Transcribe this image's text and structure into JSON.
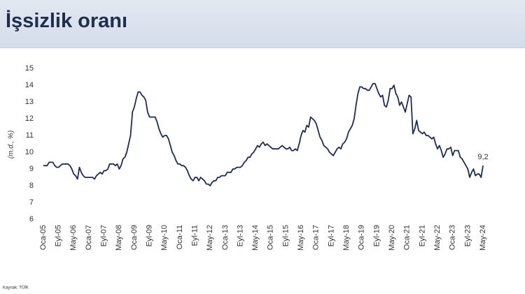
{
  "chart_data": {
    "type": "line",
    "title": "İşsizlik oranı",
    "ylabel": "(m.d., %)",
    "source": "Kaynak: TÜİK",
    "color": "#1f2d4e",
    "ylim": [
      6,
      15
    ],
    "yticks": [
      6,
      7,
      8,
      9,
      10,
      11,
      12,
      13,
      14,
      15
    ],
    "grid": false,
    "end_label": "9,2",
    "categories": [
      "Oca-05",
      null,
      null,
      null,
      null,
      null,
      null,
      null,
      "Eyl-05",
      null,
      null,
      null,
      null,
      null,
      null,
      null,
      "May-06",
      null,
      null,
      null,
      null,
      null,
      null,
      null,
      "Oca-07",
      null,
      null,
      null,
      null,
      null,
      null,
      null,
      "Eyl-07",
      null,
      null,
      null,
      null,
      null,
      null,
      null,
      "May-08",
      null,
      null,
      null,
      null,
      null,
      null,
      null,
      "Oca-09",
      null,
      null,
      null,
      null,
      null,
      null,
      null,
      "Eyl-09",
      null,
      null,
      null,
      null,
      null,
      null,
      null,
      "May-10",
      null,
      null,
      null,
      null,
      null,
      null,
      null,
      "Oca-11",
      null,
      null,
      null,
      null,
      null,
      null,
      null,
      "Eyl-11",
      null,
      null,
      null,
      null,
      null,
      null,
      null,
      "May-12",
      null,
      null,
      null,
      null,
      null,
      null,
      null,
      "Oca-13",
      null,
      null,
      null,
      null,
      null,
      null,
      null,
      "Eyl-13",
      null,
      null,
      null,
      null,
      null,
      null,
      null,
      "May-14",
      null,
      null,
      null,
      null,
      null,
      null,
      null,
      "Oca-15",
      null,
      null,
      null,
      null,
      null,
      null,
      null,
      "Eyl-15",
      null,
      null,
      null,
      null,
      null,
      null,
      null,
      "May-16",
      null,
      null,
      null,
      null,
      null,
      null,
      null,
      "Oca-17",
      null,
      null,
      null,
      null,
      null,
      null,
      null,
      "Eyl-17",
      null,
      null,
      null,
      null,
      null,
      null,
      null,
      "May-18",
      null,
      null,
      null,
      null,
      null,
      null,
      null,
      "Oca-19",
      null,
      null,
      null,
      null,
      null,
      null,
      null,
      "Eyl-19",
      null,
      null,
      null,
      null,
      null,
      null,
      null,
      "May-20",
      null,
      null,
      null,
      null,
      null,
      null,
      null,
      "Oca-21",
      null,
      null,
      null,
      null,
      null,
      null,
      null,
      "Eyl-21",
      null,
      null,
      null,
      null,
      null,
      null,
      null,
      "May-22",
      null,
      null,
      null,
      null,
      null,
      null,
      null,
      "Oca-23",
      null,
      null,
      null,
      null,
      null,
      null,
      null,
      "Eyl-23",
      null,
      null,
      null,
      null,
      null,
      null,
      null,
      "May-24"
    ],
    "values": [
      9.2,
      9.2,
      9.2,
      9.4,
      9.4,
      9.4,
      9.2,
      9.1,
      9.1,
      9.2,
      9.3,
      9.3,
      9.3,
      9.3,
      9.2,
      9.0,
      8.7,
      8.6,
      8.4,
      9.1,
      8.8,
      8.6,
      8.5,
      8.5,
      8.5,
      8.5,
      8.5,
      8.4,
      8.6,
      8.7,
      8.8,
      8.7,
      8.9,
      8.9,
      9.0,
      9.3,
      9.3,
      9.3,
      9.2,
      9.3,
      9.0,
      9.2,
      9.6,
      9.7,
      10.0,
      10.5,
      11.0,
      12.4,
      12.7,
      13.2,
      13.6,
      13.6,
      13.4,
      13.3,
      13.1,
      12.4,
      12.1,
      12.1,
      12.1,
      12.1,
      11.8,
      11.4,
      11.1,
      10.9,
      11.0,
      11.0,
      10.8,
      10.4,
      10.0,
      9.8,
      9.5,
      9.3,
      9.3,
      9.2,
      9.2,
      9.1,
      8.9,
      8.6,
      8.4,
      8.3,
      8.5,
      8.5,
      8.3,
      8.5,
      8.4,
      8.3,
      8.1,
      8.1,
      8.0,
      8.2,
      8.3,
      8.3,
      8.5,
      8.5,
      8.6,
      8.6,
      8.6,
      8.8,
      8.8,
      8.8,
      9.0,
      9.0,
      9.1,
      9.1,
      9.1,
      9.2,
      9.4,
      9.5,
      9.7,
      9.7,
      9.9,
      10.0,
      10.2,
      10.4,
      10.3,
      10.5,
      10.6,
      10.4,
      10.5,
      10.4,
      10.3,
      10.2,
      10.2,
      10.2,
      10.2,
      10.3,
      10.4,
      10.3,
      10.2,
      10.2,
      10.3,
      10.1,
      10.1,
      10.2,
      10.1,
      10.5,
      11.0,
      11.3,
      11.2,
      11.6,
      11.5,
      12.1,
      12.0,
      11.9,
      11.7,
      11.3,
      10.9,
      10.7,
      10.4,
      10.3,
      10.2,
      10.0,
      9.9,
      9.8,
      10.0,
      10.2,
      10.3,
      10.2,
      10.5,
      10.6,
      10.8,
      11.2,
      11.4,
      11.6,
      12.0,
      12.8,
      13.5,
      13.9,
      13.9,
      13.8,
      13.8,
      13.7,
      13.7,
      13.9,
      14.1,
      14.1,
      13.8,
      13.5,
      13.3,
      13.4,
      12.8,
      12.7,
      13.1,
      13.8,
      13.8,
      14.0,
      13.5,
      13.3,
      12.8,
      13.0,
      12.7,
      12.4,
      12.9,
      13.4,
      13.3,
      11.1,
      11.4,
      11.9,
      11.3,
      11.2,
      11.1,
      11.2,
      11.0,
      11.0,
      10.9,
      10.8,
      10.9,
      10.5,
      10.2,
      10.4,
      10.1,
      9.7,
      9.9,
      10.2,
      10.2,
      10.3,
      9.8,
      10.1,
      10.1,
      10.1,
      9.7,
      9.6,
      9.4,
      9.2,
      9.0,
      8.5,
      8.8,
      9.0,
      8.6,
      8.7,
      8.7,
      8.5,
      9.2
    ]
  }
}
